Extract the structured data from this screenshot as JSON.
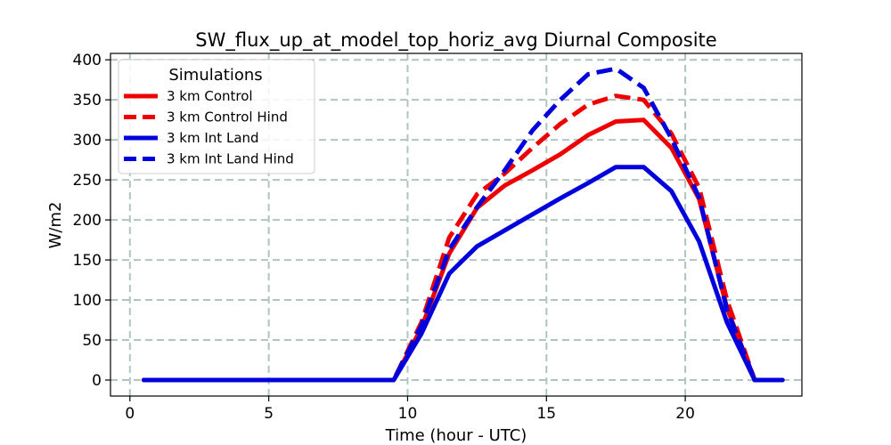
{
  "chart_data": {
    "type": "line",
    "title": "SW_flux_up_at_model_top_horiz_avg Diurnal Composite",
    "xlabel": "Time (hour - UTC)",
    "ylabel": "W/m2",
    "xlim": [
      -0.7,
      24.2
    ],
    "ylim": [
      -20,
      408
    ],
    "xticks": [
      0,
      5,
      10,
      15,
      20
    ],
    "yticks": [
      0,
      50,
      100,
      150,
      200,
      250,
      300,
      350,
      400
    ],
    "grid": true,
    "legend": {
      "title": "Simulations",
      "position": "top-left"
    },
    "x": [
      0.5,
      1.5,
      2.5,
      3.5,
      4.5,
      5.5,
      6.5,
      7.5,
      8.5,
      9.5,
      10.5,
      11.5,
      12.5,
      13.5,
      14.5,
      15.5,
      16.5,
      17.5,
      18.5,
      19.5,
      20.5,
      21.5,
      22.5,
      23.5
    ],
    "series": [
      {
        "name": "3 km Control",
        "color": "#ee0000",
        "style": "solid",
        "values": [
          0,
          0,
          0,
          0,
          0,
          0,
          0,
          0,
          0,
          0,
          65,
          158,
          215,
          243,
          262,
          282,
          306,
          323,
          325,
          290,
          226,
          90,
          0,
          0
        ]
      },
      {
        "name": "3 km Control Hind",
        "color": "#ee0000",
        "style": "dashed",
        "values": [
          0,
          0,
          0,
          0,
          0,
          0,
          0,
          0,
          0,
          0,
          72,
          178,
          232,
          258,
          290,
          320,
          344,
          355,
          350,
          308,
          240,
          100,
          0,
          0
        ]
      },
      {
        "name": "3 km Int Land",
        "color": "#0000dd",
        "style": "solid",
        "values": [
          0,
          0,
          0,
          0,
          0,
          0,
          0,
          0,
          0,
          0,
          58,
          133,
          167,
          187,
          207,
          227,
          246,
          266,
          266,
          236,
          173,
          72,
          0,
          0
        ]
      },
      {
        "name": "3 km Int Land Hind",
        "color": "#0000dd",
        "style": "dashed",
        "values": [
          0,
          0,
          0,
          0,
          0,
          0,
          0,
          0,
          0,
          0,
          68,
          163,
          216,
          262,
          312,
          350,
          382,
          389,
          365,
          302,
          228,
          88,
          0,
          0
        ]
      }
    ]
  }
}
